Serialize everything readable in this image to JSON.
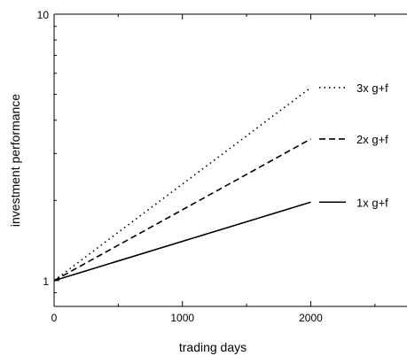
{
  "chart_data": {
    "type": "line",
    "title": "",
    "xlabel": "trading days",
    "ylabel": "investment performance",
    "xlim": [
      0,
      2750
    ],
    "ylim": [
      0.8,
      10
    ],
    "yscale": "log",
    "grid": false,
    "legend_position": "right",
    "x_ticks": [
      0,
      1000,
      2000
    ],
    "x_tick_labels": [
      "0",
      "1000",
      "2000"
    ],
    "y_ticks": [
      1,
      10
    ],
    "y_tick_labels": [
      "1",
      "10"
    ],
    "series": [
      {
        "name": "3x g+f",
        "style": "dotted",
        "color": "#000000",
        "x": [
          0,
          2000
        ],
        "y": [
          1.0,
          5.3
        ]
      },
      {
        "name": "2x g+f",
        "style": "dashed",
        "color": "#000000",
        "x": [
          0,
          2000
        ],
        "y": [
          1.0,
          3.4
        ]
      },
      {
        "name": "1x g+f",
        "style": "solid",
        "color": "#000000",
        "x": [
          0,
          2000
        ],
        "y": [
          1.0,
          1.97
        ]
      }
    ]
  }
}
